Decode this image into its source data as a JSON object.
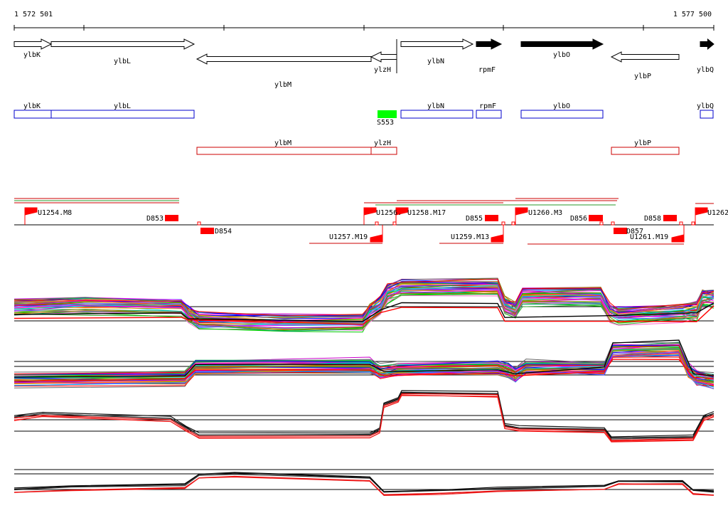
{
  "coordinates": {
    "start": "1 572 501",
    "end": "1 577 500"
  },
  "genes": [
    {
      "id": "ylbK",
      "dir": "right",
      "filled": false
    },
    {
      "id": "ylbL",
      "dir": "right",
      "filled": false
    },
    {
      "id": "ylbM",
      "dir": "left",
      "filled": false
    },
    {
      "id": "ylzH",
      "dir": "left",
      "filled": false
    },
    {
      "id": "ylbN",
      "dir": "right",
      "filled": false
    },
    {
      "id": "rpmF",
      "dir": "right",
      "filled": true
    },
    {
      "id": "ylbO",
      "dir": "right",
      "filled": true
    },
    {
      "id": "ylbP",
      "dir": "left",
      "filled": false
    },
    {
      "id": "ylbQ",
      "dir": "right",
      "filled": true
    }
  ],
  "annotations_forward": [
    "ylbK",
    "ylbL",
    "ylbN",
    "rpmF",
    "ylbO",
    "ylbQ"
  ],
  "annotations_reverse": [
    "ylbM",
    "ylzH",
    "ylbP"
  ],
  "marker": {
    "label": "S553",
    "color": "#00ff00"
  },
  "features_forward": [
    "U1254.M8",
    "U1256.",
    "U1258.M17",
    "U1260.M3",
    "U1262"
  ],
  "features_reverse": [
    "U1257.M19",
    "U1259.M13",
    "U1261.M19"
  ],
  "red_boxes": [
    "D853",
    "D854",
    "D855",
    "D856",
    "D857",
    "D858"
  ],
  "colors": {
    "forward_annotation": "#0000cc",
    "reverse_annotation": "#cc0000",
    "feature": "#ff0000",
    "marker": "#00ff00"
  }
}
